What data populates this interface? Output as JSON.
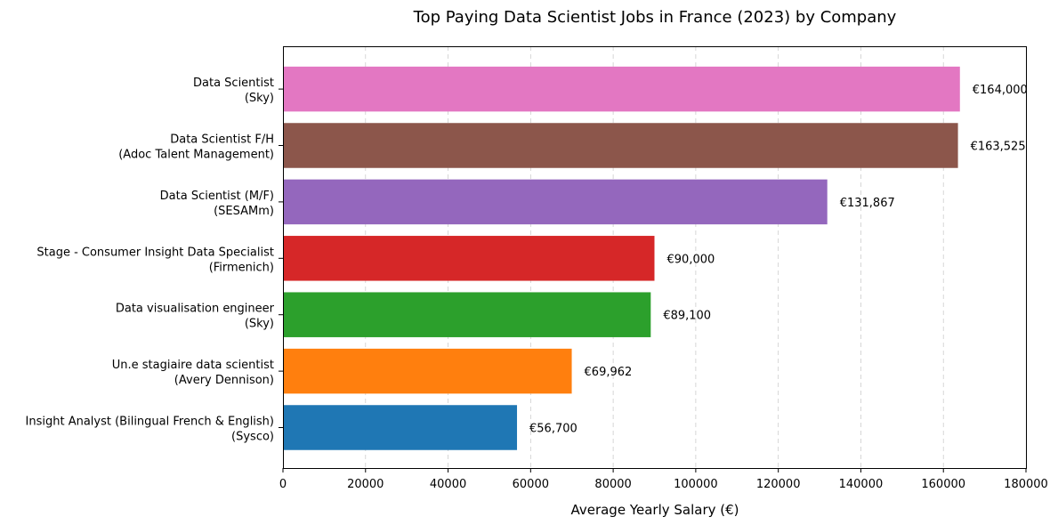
{
  "chart_data": {
    "type": "bar",
    "orientation": "horizontal",
    "title": "Top Paying Data Scientist Jobs in France (2023) by Company",
    "xlabel": "Average Yearly Salary (€)",
    "ylabel": "",
    "xlim": [
      0,
      180000
    ],
    "xticks": [
      "0",
      "20000",
      "40000",
      "60000",
      "80000",
      "100000",
      "120000",
      "140000",
      "160000",
      "180000"
    ],
    "grid": "vertical dashed",
    "categories": [
      {
        "title": "Insight Analyst (Bilingual French & English)",
        "company": "(Sysco)"
      },
      {
        "title": "Un.e stagiaire data scientist",
        "company": "(Avery Dennison)"
      },
      {
        "title": "Data visualisation engineer",
        "company": "(Sky)"
      },
      {
        "title": "Stage - Consumer Insight Data Specialist",
        "company": "(Firmenich)"
      },
      {
        "title": "Data Scientist (M/F)",
        "company": "(SESAMm)"
      },
      {
        "title": "Data Scientist F/H",
        "company": "(Adoc Talent Management)"
      },
      {
        "title": "Data Scientist",
        "company": "(Sky)"
      }
    ],
    "values": [
      56700,
      69962,
      89100,
      90000,
      131867,
      163525,
      164000
    ],
    "value_labels": [
      "€56,700",
      "€69,962",
      "€89,100",
      "€90,000",
      "€131,867",
      "€163,525",
      "€164,000"
    ],
    "colors": [
      "#1f77b4",
      "#ff7f0e",
      "#2ca02c",
      "#d62728",
      "#9467bd",
      "#8c564b",
      "#e377c2"
    ]
  }
}
